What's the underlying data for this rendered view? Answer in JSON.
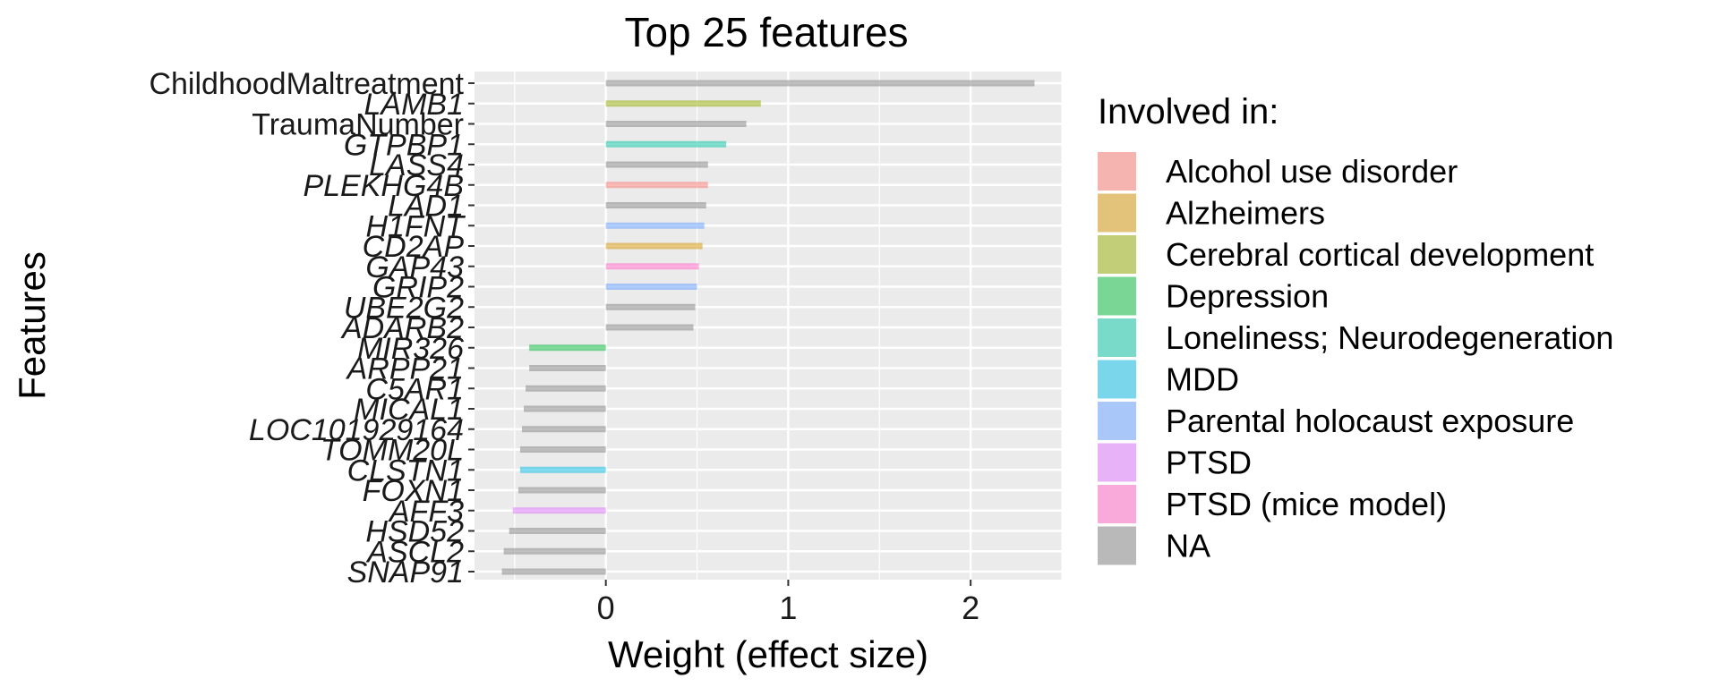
{
  "chart_data": {
    "type": "bar",
    "orientation": "horizontal",
    "title": "Top 25 features",
    "xlabel": "Weight (effect size)",
    "ylabel": "Features",
    "xlim": [
      -0.72,
      2.5
    ],
    "xticks": [
      0,
      1,
      2
    ],
    "grid": true,
    "bar_opacity": 0.5,
    "legend": {
      "title": "Involved in:",
      "placement": "right",
      "entries": [
        {
          "label": "Alcohol use disorder",
          "color": "#F8766D"
        },
        {
          "label": "Alzheimers",
          "color": "#D39200"
        },
        {
          "label": "Cerebral cortical development",
          "color": "#93AA00"
        },
        {
          "label": "Depression",
          "color": "#00BA38"
        },
        {
          "label": "Loneliness; Neurodegeneration",
          "color": "#00C19F"
        },
        {
          "label": "MDD",
          "color": "#00B9E3"
        },
        {
          "label": "Parental holocaust exposure",
          "color": "#619CFF"
        },
        {
          "label": "PTSD",
          "color": "#DB72FB"
        },
        {
          "label": "PTSD (mice model)",
          "color": "#FF61C3"
        },
        {
          "label": "NA",
          "color": "#7F7F7F"
        }
      ]
    },
    "features": [
      {
        "name": "ChildhoodMaltreatment",
        "value": 2.35,
        "category": "NA",
        "italic": false
      },
      {
        "name": "LAMB1",
        "value": 0.85,
        "category": "Cerebral cortical development",
        "italic": true
      },
      {
        "name": "TraumaNumber",
        "value": 0.77,
        "category": "NA",
        "italic": false
      },
      {
        "name": "GTPBP1",
        "value": 0.66,
        "category": "Loneliness; Neurodegeneration",
        "italic": true
      },
      {
        "name": "LASS4",
        "value": 0.56,
        "category": "NA",
        "italic": true
      },
      {
        "name": "PLEKHG4B",
        "value": 0.56,
        "category": "Alcohol use disorder",
        "italic": true
      },
      {
        "name": "LAD1",
        "value": 0.55,
        "category": "NA",
        "italic": true
      },
      {
        "name": "H1FNT",
        "value": 0.54,
        "category": "Parental holocaust exposure",
        "italic": true
      },
      {
        "name": "CD2AP",
        "value": 0.53,
        "category": "Alzheimers",
        "italic": true
      },
      {
        "name": "GAP43",
        "value": 0.51,
        "category": "PTSD (mice model)",
        "italic": true
      },
      {
        "name": "GRIP2",
        "value": 0.5,
        "category": "Parental holocaust exposure",
        "italic": true
      },
      {
        "name": "UBE2G2",
        "value": 0.49,
        "category": "NA",
        "italic": true
      },
      {
        "name": "ADARB2",
        "value": 0.48,
        "category": "NA",
        "italic": true
      },
      {
        "name": "MIR326",
        "value": -0.42,
        "category": "Depression",
        "italic": true
      },
      {
        "name": "ARPP21",
        "value": -0.42,
        "category": "NA",
        "italic": true
      },
      {
        "name": "C5AR1",
        "value": -0.44,
        "category": "NA",
        "italic": true
      },
      {
        "name": "MICAL1",
        "value": -0.45,
        "category": "NA",
        "italic": true
      },
      {
        "name": "LOC101929164",
        "value": -0.46,
        "category": "NA",
        "italic": true
      },
      {
        "name": "TOMM20L",
        "value": -0.47,
        "category": "NA",
        "italic": true
      },
      {
        "name": "CLSTN1",
        "value": -0.47,
        "category": "MDD",
        "italic": true
      },
      {
        "name": "FOXN1",
        "value": -0.48,
        "category": "NA",
        "italic": true
      },
      {
        "name": "AFF3",
        "value": -0.51,
        "category": "PTSD",
        "italic": true
      },
      {
        "name": "HSD52",
        "value": -0.53,
        "category": "NA",
        "italic": true
      },
      {
        "name": "ASCL2",
        "value": -0.56,
        "category": "NA",
        "italic": true
      },
      {
        "name": "SNAP91",
        "value": -0.57,
        "category": "NA",
        "italic": true
      }
    ]
  }
}
